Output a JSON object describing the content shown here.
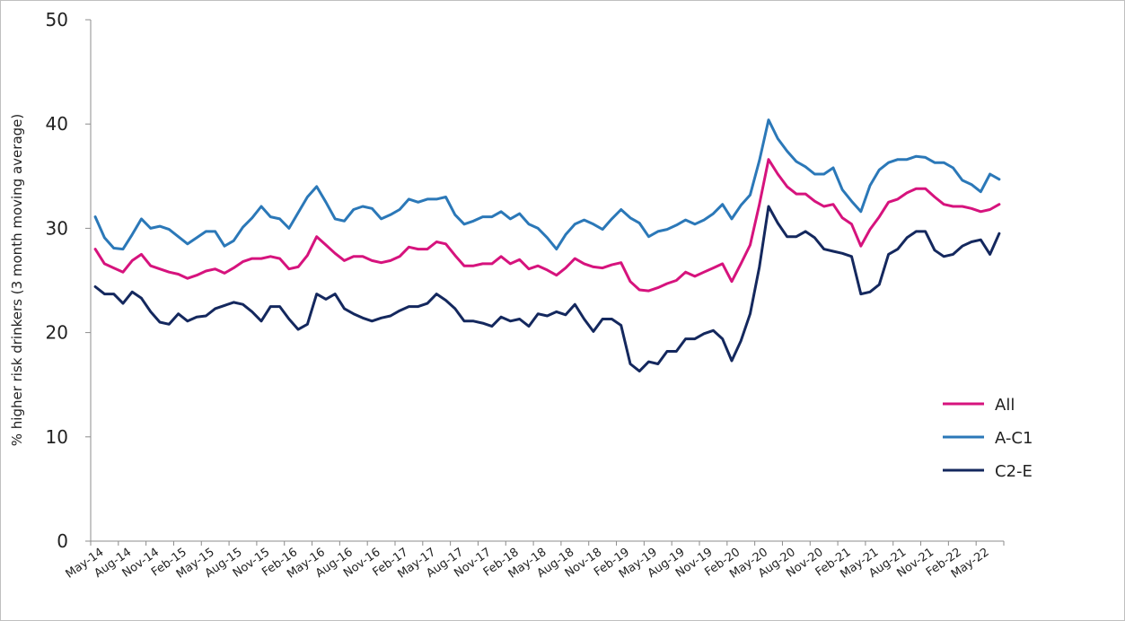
{
  "chart_data": {
    "type": "line",
    "title": "",
    "xlabel": "",
    "ylabel": "% higher risk drinkers (3 month moving average)",
    "ylim": [
      0,
      50
    ],
    "yticks": [
      "0",
      "10",
      "20",
      "30",
      "40",
      "50"
    ],
    "grid": false,
    "legend_position": "right",
    "x_start": "May-14",
    "x_end": "Jul-22",
    "xtick_labels": [
      "May-14",
      "Aug-14",
      "Nov-14",
      "Feb-15",
      "May-15",
      "Aug-15",
      "Nov-15",
      "Feb-16",
      "May-16",
      "Aug-16",
      "Nov-16",
      "Feb-17",
      "May-17",
      "Aug-17",
      "Nov-17",
      "Feb-18",
      "May-18",
      "Aug-18",
      "Nov-18",
      "Feb-19",
      "May-19",
      "Aug-19",
      "Nov-19",
      "Feb-20",
      "May-20",
      "Aug-20",
      "Nov-20",
      "Feb-21",
      "May-21",
      "Aug-21",
      "Nov-21",
      "Feb-22",
      "May-22"
    ],
    "series": [
      {
        "name": "All",
        "color": "#d6137d",
        "values": [
          28.0,
          26.6,
          26.2,
          25.8,
          26.9,
          27.5,
          26.4,
          26.1,
          25.8,
          25.6,
          25.2,
          25.5,
          25.9,
          26.1,
          25.7,
          26.2,
          26.8,
          27.1,
          27.1,
          27.3,
          27.1,
          26.1,
          26.3,
          27.4,
          29.2,
          28.4,
          27.6,
          26.9,
          27.3,
          27.3,
          26.9,
          26.7,
          26.9,
          27.3,
          28.2,
          28.0,
          28.0,
          28.7,
          28.5,
          27.4,
          26.4,
          26.4,
          26.6,
          26.6,
          27.3,
          26.6,
          27.0,
          26.1,
          26.4,
          26.0,
          25.5,
          26.2,
          27.1,
          26.6,
          26.3,
          26.2,
          26.5,
          26.7,
          24.9,
          24.1,
          24.0,
          24.3,
          24.7,
          25.0,
          25.8,
          25.4,
          25.8,
          26.2,
          26.6,
          24.9,
          26.6,
          28.4,
          32.3,
          36.6,
          35.2,
          34.0,
          33.3,
          33.3,
          32.6,
          32.1,
          32.3,
          31.0,
          30.4,
          28.3,
          29.9,
          31.1,
          32.5,
          32.8,
          33.4,
          33.8,
          33.8,
          33.0,
          32.3,
          32.1,
          32.1,
          31.9,
          31.6,
          31.8,
          32.3
        ]
      },
      {
        "name": "A-C1",
        "color": "#2b78b8",
        "values": [
          31.1,
          29.1,
          28.1,
          28.0,
          29.4,
          30.9,
          30.0,
          30.2,
          29.9,
          29.2,
          28.5,
          29.1,
          29.7,
          29.7,
          28.3,
          28.8,
          30.1,
          31.0,
          32.1,
          31.1,
          30.9,
          30.0,
          31.5,
          33.0,
          34.0,
          32.5,
          30.9,
          30.7,
          31.8,
          32.1,
          31.9,
          30.9,
          31.3,
          31.8,
          32.8,
          32.5,
          32.8,
          32.8,
          33.0,
          31.3,
          30.4,
          30.7,
          31.1,
          31.1,
          31.6,
          30.9,
          31.4,
          30.4,
          30.0,
          29.1,
          28.0,
          29.4,
          30.4,
          30.8,
          30.4,
          29.9,
          30.9,
          31.8,
          31.0,
          30.5,
          29.2,
          29.7,
          29.9,
          30.3,
          30.8,
          30.4,
          30.8,
          31.4,
          32.3,
          30.9,
          32.2,
          33.2,
          36.5,
          40.4,
          38.6,
          37.4,
          36.4,
          35.9,
          35.2,
          35.2,
          35.8,
          33.7,
          32.6,
          31.6,
          34.1,
          35.6,
          36.3,
          36.6,
          36.6,
          36.9,
          36.8,
          36.3,
          36.3,
          35.8,
          34.6,
          34.2,
          33.5,
          35.2,
          34.7
        ]
      },
      {
        "name": "C2-E",
        "color": "#14285e",
        "values": [
          24.4,
          23.7,
          23.7,
          22.8,
          23.9,
          23.3,
          22.0,
          21.0,
          20.8,
          21.8,
          21.1,
          21.5,
          21.6,
          22.3,
          22.6,
          22.9,
          22.7,
          22.0,
          21.1,
          22.5,
          22.5,
          21.3,
          20.3,
          20.8,
          23.7,
          23.2,
          23.7,
          22.3,
          21.8,
          21.4,
          21.1,
          21.4,
          21.6,
          22.1,
          22.5,
          22.5,
          22.8,
          23.7,
          23.1,
          22.3,
          21.1,
          21.1,
          20.9,
          20.6,
          21.5,
          21.1,
          21.3,
          20.6,
          21.8,
          21.6,
          22.0,
          21.7,
          22.7,
          21.3,
          20.1,
          21.3,
          21.3,
          20.7,
          17.0,
          16.3,
          17.2,
          17.0,
          18.2,
          18.2,
          19.4,
          19.4,
          19.9,
          20.2,
          19.4,
          17.3,
          19.2,
          21.8,
          26.3,
          32.1,
          30.5,
          29.2,
          29.2,
          29.7,
          29.1,
          28.0,
          27.8,
          27.6,
          27.3,
          23.7,
          23.9,
          24.6,
          27.5,
          28.0,
          29.1,
          29.7,
          29.7,
          27.9,
          27.3,
          27.5,
          28.3,
          28.7,
          28.9,
          27.5,
          29.5
        ]
      }
    ]
  }
}
